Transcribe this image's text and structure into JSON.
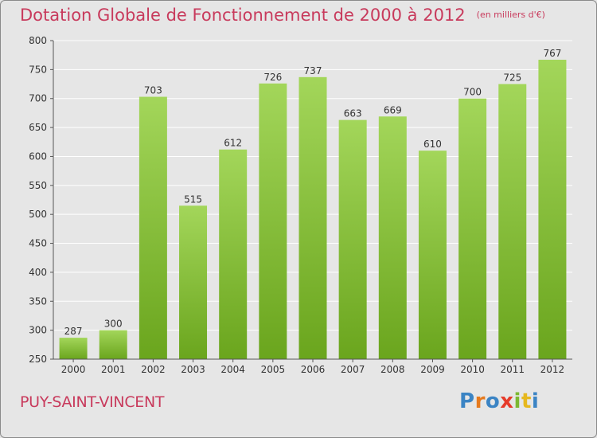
{
  "chart_data": {
    "type": "bar",
    "title": "Dotation Globale de Fonctionnement de 2000 à 2012",
    "unit": "(en milliers d'€)",
    "categories": [
      "2000",
      "2001",
      "2002",
      "2003",
      "2004",
      "2005",
      "2006",
      "2007",
      "2008",
      "2009",
      "2010",
      "2011",
      "2012"
    ],
    "values": [
      287,
      300,
      703,
      515,
      612,
      726,
      737,
      663,
      669,
      610,
      700,
      725,
      767
    ],
    "ylim": [
      250,
      800
    ],
    "yticks": [
      250,
      300,
      350,
      400,
      450,
      500,
      550,
      600,
      650,
      700,
      750,
      800
    ],
    "grid": true,
    "bar_color_top": "#a3d65a",
    "bar_color_bottom": "#6aa51d"
  },
  "footer": {
    "place": "PUY-SAINT-VINCENT",
    "logo": {
      "letters": [
        "P",
        "r",
        "o",
        "x",
        "i",
        "t",
        "i"
      ],
      "colors": [
        "#3b84c4",
        "#e67a1e",
        "#3b84c4",
        "#e63b2a",
        "#7cb832",
        "#e6b81e",
        "#3b84c4"
      ]
    }
  },
  "colors": {
    "title": "#c83a5c",
    "background": "#e6e6e6"
  }
}
